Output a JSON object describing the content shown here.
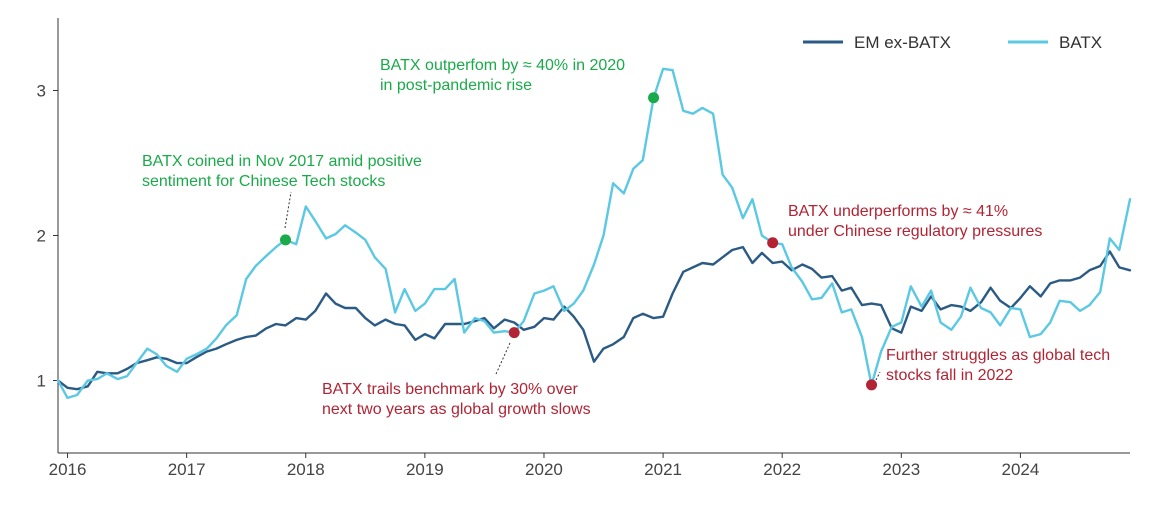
{
  "chart_data": {
    "type": "line",
    "title": "",
    "xlabel": "",
    "ylabel": "",
    "xlim": [
      2015.92,
      2024.92
    ],
    "ylim": [
      0.5,
      3.5
    ],
    "x_ticks": [
      2016,
      2017,
      2018,
      2019,
      2020,
      2021,
      2022,
      2023,
      2024
    ],
    "x_tick_labels": [
      "2016",
      "2017",
      "2018",
      "2019",
      "2020",
      "2021",
      "2022",
      "2023",
      "2024"
    ],
    "y_ticks": [
      1,
      2,
      3
    ],
    "y_tick_labels": [
      "1",
      "2",
      "3"
    ],
    "grid": false,
    "legend_position": "top-right",
    "series": [
      {
        "name": "EM ex-BATX",
        "color": "#2b5b84",
        "points": [
          [
            2015.92,
            1.0
          ],
          [
            2016.0,
            0.95
          ],
          [
            2016.08,
            0.94
          ],
          [
            2016.17,
            0.96
          ],
          [
            2016.25,
            1.06
          ],
          [
            2016.33,
            1.05
          ],
          [
            2016.42,
            1.05
          ],
          [
            2016.5,
            1.08
          ],
          [
            2016.58,
            1.12
          ],
          [
            2016.67,
            1.14
          ],
          [
            2016.75,
            1.16
          ],
          [
            2016.83,
            1.15
          ],
          [
            2016.92,
            1.12
          ],
          [
            2017.0,
            1.12
          ],
          [
            2017.08,
            1.16
          ],
          [
            2017.17,
            1.2
          ],
          [
            2017.25,
            1.22
          ],
          [
            2017.33,
            1.25
          ],
          [
            2017.42,
            1.28
          ],
          [
            2017.5,
            1.3
          ],
          [
            2017.58,
            1.31
          ],
          [
            2017.67,
            1.36
          ],
          [
            2017.75,
            1.39
          ],
          [
            2017.83,
            1.38
          ],
          [
            2017.92,
            1.43
          ],
          [
            2018.0,
            1.42
          ],
          [
            2018.08,
            1.48
          ],
          [
            2018.17,
            1.6
          ],
          [
            2018.25,
            1.53
          ],
          [
            2018.33,
            1.5
          ],
          [
            2018.42,
            1.5
          ],
          [
            2018.5,
            1.43
          ],
          [
            2018.58,
            1.38
          ],
          [
            2018.67,
            1.42
          ],
          [
            2018.75,
            1.39
          ],
          [
            2018.83,
            1.38
          ],
          [
            2018.92,
            1.28
          ],
          [
            2019.0,
            1.32
          ],
          [
            2019.08,
            1.29
          ],
          [
            2019.17,
            1.39
          ],
          [
            2019.25,
            1.39
          ],
          [
            2019.33,
            1.39
          ],
          [
            2019.42,
            1.41
          ],
          [
            2019.5,
            1.43
          ],
          [
            2019.58,
            1.36
          ],
          [
            2019.67,
            1.42
          ],
          [
            2019.75,
            1.4
          ],
          [
            2019.83,
            1.35
          ],
          [
            2019.92,
            1.37
          ],
          [
            2020.0,
            1.43
          ],
          [
            2020.08,
            1.42
          ],
          [
            2020.17,
            1.51
          ],
          [
            2020.25,
            1.44
          ],
          [
            2020.33,
            1.35
          ],
          [
            2020.42,
            1.13
          ],
          [
            2020.5,
            1.22
          ],
          [
            2020.58,
            1.25
          ],
          [
            2020.67,
            1.3
          ],
          [
            2020.75,
            1.43
          ],
          [
            2020.83,
            1.46
          ],
          [
            2020.92,
            1.43
          ],
          [
            2021.0,
            1.44
          ],
          [
            2021.08,
            1.6
          ],
          [
            2021.17,
            1.75
          ],
          [
            2021.25,
            1.78
          ],
          [
            2021.33,
            1.81
          ],
          [
            2021.42,
            1.8
          ],
          [
            2021.5,
            1.85
          ],
          [
            2021.58,
            1.9
          ],
          [
            2021.67,
            1.92
          ],
          [
            2021.75,
            1.81
          ],
          [
            2021.83,
            1.88
          ],
          [
            2021.92,
            1.81
          ],
          [
            2022.0,
            1.82
          ],
          [
            2022.08,
            1.76
          ],
          [
            2022.17,
            1.8
          ],
          [
            2022.25,
            1.77
          ],
          [
            2022.33,
            1.71
          ],
          [
            2022.42,
            1.72
          ],
          [
            2022.5,
            1.62
          ],
          [
            2022.58,
            1.64
          ],
          [
            2022.67,
            1.52
          ],
          [
            2022.75,
            1.53
          ],
          [
            2022.83,
            1.52
          ],
          [
            2022.92,
            1.36
          ],
          [
            2023.0,
            1.33
          ],
          [
            2023.08,
            1.51
          ],
          [
            2023.17,
            1.48
          ],
          [
            2023.25,
            1.58
          ],
          [
            2023.33,
            1.49
          ],
          [
            2023.42,
            1.52
          ],
          [
            2023.5,
            1.51
          ],
          [
            2023.58,
            1.48
          ],
          [
            2023.67,
            1.54
          ],
          [
            2023.75,
            1.64
          ],
          [
            2023.83,
            1.55
          ],
          [
            2023.92,
            1.5
          ],
          [
            2024.0,
            1.57
          ],
          [
            2024.08,
            1.65
          ],
          [
            2024.17,
            1.58
          ],
          [
            2024.25,
            1.67
          ],
          [
            2024.33,
            1.69
          ],
          [
            2024.42,
            1.69
          ],
          [
            2024.5,
            1.71
          ],
          [
            2024.58,
            1.76
          ],
          [
            2024.67,
            1.79
          ],
          [
            2024.75,
            1.89
          ],
          [
            2024.83,
            1.78
          ],
          [
            2024.92,
            1.76
          ]
        ]
      },
      {
        "name": "BATX",
        "color": "#5bc8e4",
        "points": [
          [
            2015.92,
            1.0
          ],
          [
            2016.0,
            0.88
          ],
          [
            2016.08,
            0.9
          ],
          [
            2016.17,
            1.0
          ],
          [
            2016.25,
            1.01
          ],
          [
            2016.33,
            1.05
          ],
          [
            2016.42,
            1.01
          ],
          [
            2016.5,
            1.03
          ],
          [
            2016.58,
            1.12
          ],
          [
            2016.67,
            1.22
          ],
          [
            2016.75,
            1.18
          ],
          [
            2016.83,
            1.1
          ],
          [
            2016.92,
            1.06
          ],
          [
            2017.0,
            1.15
          ],
          [
            2017.08,
            1.18
          ],
          [
            2017.17,
            1.22
          ],
          [
            2017.25,
            1.29
          ],
          [
            2017.33,
            1.38
          ],
          [
            2017.42,
            1.45
          ],
          [
            2017.5,
            1.7
          ],
          [
            2017.58,
            1.79
          ],
          [
            2017.67,
            1.86
          ],
          [
            2017.75,
            1.92
          ],
          [
            2017.83,
            1.97
          ],
          [
            2017.92,
            1.94
          ],
          [
            2018.0,
            2.2
          ],
          [
            2018.08,
            2.1
          ],
          [
            2018.17,
            1.98
          ],
          [
            2018.25,
            2.01
          ],
          [
            2018.33,
            2.07
          ],
          [
            2018.42,
            2.02
          ],
          [
            2018.5,
            1.97
          ],
          [
            2018.58,
            1.85
          ],
          [
            2018.67,
            1.77
          ],
          [
            2018.75,
            1.47
          ],
          [
            2018.83,
            1.63
          ],
          [
            2018.92,
            1.48
          ],
          [
            2019.0,
            1.53
          ],
          [
            2019.08,
            1.63
          ],
          [
            2019.17,
            1.63
          ],
          [
            2019.25,
            1.7
          ],
          [
            2019.33,
            1.33
          ],
          [
            2019.42,
            1.43
          ],
          [
            2019.5,
            1.41
          ],
          [
            2019.58,
            1.33
          ],
          [
            2019.67,
            1.34
          ],
          [
            2019.75,
            1.33
          ],
          [
            2019.83,
            1.41
          ],
          [
            2019.92,
            1.6
          ],
          [
            2020.0,
            1.62
          ],
          [
            2020.08,
            1.65
          ],
          [
            2020.17,
            1.48
          ],
          [
            2020.25,
            1.53
          ],
          [
            2020.33,
            1.62
          ],
          [
            2020.42,
            1.8
          ],
          [
            2020.5,
            2.0
          ],
          [
            2020.58,
            2.36
          ],
          [
            2020.67,
            2.29
          ],
          [
            2020.75,
            2.46
          ],
          [
            2020.83,
            2.52
          ],
          [
            2020.92,
            2.95
          ],
          [
            2021.0,
            3.15
          ],
          [
            2021.08,
            3.14
          ],
          [
            2021.17,
            2.86
          ],
          [
            2021.25,
            2.84
          ],
          [
            2021.33,
            2.88
          ],
          [
            2021.42,
            2.84
          ],
          [
            2021.5,
            2.42
          ],
          [
            2021.58,
            2.33
          ],
          [
            2021.67,
            2.12
          ],
          [
            2021.75,
            2.25
          ],
          [
            2021.83,
            2.0
          ],
          [
            2021.92,
            1.95
          ],
          [
            2022.0,
            1.94
          ],
          [
            2022.08,
            1.78
          ],
          [
            2022.17,
            1.68
          ],
          [
            2022.25,
            1.56
          ],
          [
            2022.33,
            1.57
          ],
          [
            2022.42,
            1.67
          ],
          [
            2022.5,
            1.47
          ],
          [
            2022.58,
            1.49
          ],
          [
            2022.67,
            1.3
          ],
          [
            2022.75,
            0.97
          ],
          [
            2022.83,
            1.2
          ],
          [
            2022.92,
            1.37
          ],
          [
            2023.0,
            1.4
          ],
          [
            2023.08,
            1.65
          ],
          [
            2023.17,
            1.51
          ],
          [
            2023.25,
            1.62
          ],
          [
            2023.33,
            1.4
          ],
          [
            2023.42,
            1.35
          ],
          [
            2023.5,
            1.44
          ],
          [
            2023.58,
            1.64
          ],
          [
            2023.67,
            1.5
          ],
          [
            2023.75,
            1.47
          ],
          [
            2023.83,
            1.38
          ],
          [
            2023.92,
            1.5
          ],
          [
            2024.0,
            1.49
          ],
          [
            2024.08,
            1.3
          ],
          [
            2024.17,
            1.32
          ],
          [
            2024.25,
            1.4
          ],
          [
            2024.33,
            1.55
          ],
          [
            2024.42,
            1.54
          ],
          [
            2024.5,
            1.48
          ],
          [
            2024.58,
            1.52
          ],
          [
            2024.67,
            1.61
          ],
          [
            2024.75,
            1.98
          ],
          [
            2024.83,
            1.9
          ],
          [
            2024.92,
            2.25
          ]
        ]
      }
    ],
    "annotations": [
      {
        "x": 2017.83,
        "y": 1.97,
        "color": "#1aaa4a",
        "lines": [
          "BATX coined in Nov 2017 amid positive",
          "sentiment for Chinese Tech stocks"
        ]
      },
      {
        "x": 2020.92,
        "y": 2.95,
        "color": "#1aaa4a",
        "lines": [
          "BATX outperfom by ≈ 40% in 2020",
          "in post-pandemic rise"
        ]
      },
      {
        "x": 2021.92,
        "y": 1.95,
        "color": "#b22434",
        "lines": [
          "BATX underperforms by ≈ 41%",
          "under Chinese regulatory pressures"
        ]
      },
      {
        "x": 2019.75,
        "y": 1.33,
        "color": "#b22434",
        "lines": [
          "BATX trails benchmark by 30% over",
          "next two years as global growth slows"
        ]
      },
      {
        "x": 2022.75,
        "y": 0.97,
        "color": "#b22434",
        "lines": [
          "Further struggles as global tech",
          "stocks fall in 2022"
        ]
      }
    ]
  }
}
